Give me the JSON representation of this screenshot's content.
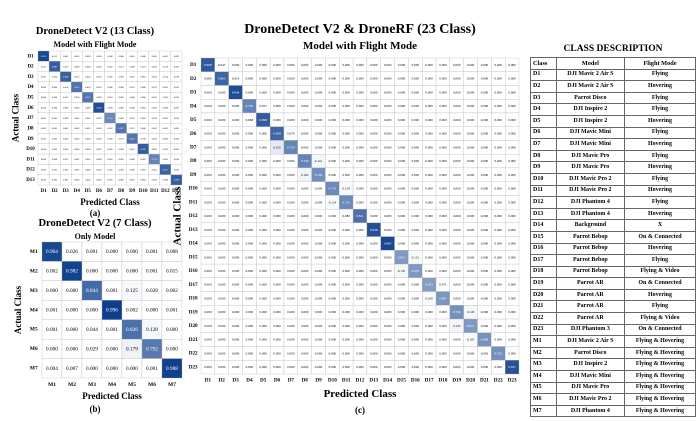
{
  "titles": {
    "a": "DroneDetect V2 (13 Class)",
    "a_sub": "Model with Flight Mode",
    "b": "DroneDetect V2 (7 Class)",
    "b_sub": "Only Model",
    "c": "DroneDetect V2 & DroneRF (23 Class)",
    "c_sub": "Model with Flight Mode",
    "desc": "CLASS DESCRIPTION"
  },
  "captions": {
    "a": "(a)",
    "b": "(b)",
    "c": "(c)"
  },
  "chart_data": [
    {
      "type": "heatmap",
      "id": "a",
      "title": "DroneDetect V2 (13 Class)",
      "subtitle": "Model with Flight Mode",
      "xlabel": "Predicted Class",
      "ylabel": "Actual Class",
      "labels": [
        "D1",
        "D2",
        "D3",
        "D4",
        "D5",
        "D6",
        "D7",
        "D8",
        "D9",
        "D10",
        "D11",
        "D12",
        "D13"
      ],
      "matrix": [
        [
          0.965,
          0.013,
          0.002,
          0.005,
          0.0,
          0.0,
          0.0,
          0.0,
          0.003,
          0.0,
          0.005,
          0.005,
          0.002
        ],
        [
          0.012,
          0.887,
          0.017,
          0.009,
          0.0,
          0.005,
          0.007,
          0.012,
          0.009,
          0.021,
          0.002,
          0.019,
          0.002
        ],
        [
          0.005,
          0.024,
          0.88,
          0.012,
          0.024,
          0.01,
          0.002,
          0.01,
          0.002,
          0.005,
          0.002,
          0.014,
          0.01
        ],
        [
          0.0,
          0.0,
          0.01,
          0.812,
          0.054,
          0.01,
          0.0,
          0.0,
          0.012,
          0.0,
          0.012,
          0.005,
          0.005
        ],
        [
          0.0,
          0.0,
          0.012,
          0.05,
          0.81,
          0.0,
          0.01,
          0.002,
          0.0,
          0.0,
          0.005,
          0.002,
          0.002
        ],
        [
          0.0,
          0.0,
          0.0,
          0.0,
          0.0,
          0.94,
          0.009,
          0.0,
          0.0,
          0.002,
          0.002,
          0.0,
          0.007
        ],
        [
          0.005,
          0.002,
          0.0,
          0.005,
          0.002,
          0.026,
          0.731,
          0.0,
          0.002,
          0.002,
          0.01,
          0.005,
          0.01
        ],
        [
          0.003,
          0.005,
          0.003,
          0.002,
          0.002,
          0.0,
          0.002,
          0.807,
          0.017,
          0.0,
          0.005,
          0.002,
          0.002
        ],
        [
          0.007,
          0.002,
          0.005,
          0.005,
          0.0,
          0.002,
          0.005,
          0.021,
          0.81,
          0.01,
          0.002,
          0.0,
          0.0
        ],
        [
          0.0,
          0.002,
          0.002,
          0.0,
          0.0,
          0.002,
          0.005,
          0.002,
          0.005,
          0.893,
          0.002,
          0.002,
          0.002
        ],
        [
          0.0,
          0.0,
          0.012,
          0.002,
          0.005,
          0.0,
          0.002,
          0.005,
          0.0,
          0.005,
          0.751,
          0.002,
          0.0
        ],
        [
          0.0,
          0.005,
          0.002,
          0.002,
          0.0,
          0.002,
          0.002,
          0.002,
          0.0,
          0.007,
          0.005,
          0.871,
          0.002
        ],
        [
          0.002,
          0.002,
          0.007,
          0.0,
          0.002,
          0.002,
          0.005,
          0.0,
          0.005,
          0.002,
          0.002,
          0.008,
          0.89
        ]
      ]
    },
    {
      "type": "heatmap",
      "id": "b",
      "title": "DroneDetect V2 (7 Class)",
      "subtitle": "Only Model",
      "xlabel": "Predicted Class",
      "ylabel": "Actual Class",
      "labels": [
        "M1",
        "M2",
        "M3",
        "M4",
        "M5",
        "M6",
        "M7"
      ],
      "matrix": [
        [
          0.964,
          0.026,
          0.001,
          0.0,
          0.0,
          0.001,
          0.008
        ],
        [
          0.002,
          0.982,
          0.0,
          0.0,
          0.0,
          0.001,
          0.015
        ],
        [
          0.0,
          0.0,
          0.844,
          0.001,
          0.125,
          0.028,
          0.002
        ],
        [
          0.001,
          0.0,
          0.0,
          0.996,
          0.002,
          0.0,
          0.001
        ],
        [
          0.001,
          0.0,
          0.044,
          0.001,
          0.826,
          0.128,
          0.0
        ],
        [
          0.0,
          0.0,
          0.029,
          0.0,
          0.179,
          0.792,
          0.0
        ],
        [
          0.004,
          0.007,
          0.0,
          0.0,
          0.0,
          0.001,
          0.988
        ]
      ]
    },
    {
      "type": "heatmap",
      "id": "c",
      "title": "DroneDetect V2 & DroneRF (23 Class)",
      "subtitle": "Model with Flight Mode",
      "xlabel": "Predicted Class",
      "ylabel": "Actual Class",
      "labels": [
        "D1",
        "D2",
        "D3",
        "D4",
        "D5",
        "D6",
        "D7",
        "D8",
        "D9",
        "D10",
        "D11",
        "D12",
        "D13",
        "D14",
        "D15",
        "D16",
        "D17",
        "D18",
        "D19",
        "D20",
        "D21",
        "D22",
        "D23"
      ],
      "diagonal": [
        0.908,
        0.865,
        0.944,
        0.748,
        0.898,
        0.858,
        0.75,
        0.748,
        0.709,
        0.733,
        0.724,
        0.821,
        0.938,
        0.965,
        0.671,
        0.67,
        0.653,
        0.681,
        0.7,
        0.671,
        0.698,
        0.702,
        0.931
      ],
      "off_diagonal": [
        {
          "row": "D1",
          "col": "D2",
          "value": 0.047
        },
        {
          "row": "D2",
          "col": "D1",
          "value": 0.06
        },
        {
          "row": "D2",
          "col": "D3",
          "value": 0.016
        },
        {
          "row": "D4",
          "col": "D5",
          "value": 0.057
        },
        {
          "row": "D5",
          "col": "D4",
          "value": 0.068
        },
        {
          "row": "D6",
          "col": "D7",
          "value": 0.074
        },
        {
          "row": "D7",
          "col": "D6",
          "value": 0.25
        },
        {
          "row": "D8",
          "col": "D9",
          "value": 0.141
        },
        {
          "row": "D9",
          "col": "D8",
          "value": 0.162
        },
        {
          "row": "D10",
          "col": "D11",
          "value": 0.119
        },
        {
          "row": "D11",
          "col": "D10",
          "value": 0.114
        },
        {
          "row": "D12",
          "col": "D11",
          "value": 0.082
        },
        {
          "row": "D15",
          "col": "D16",
          "value": 0.115
        },
        {
          "row": "D16",
          "col": "D15",
          "value": 0.135
        },
        {
          "row": "D17",
          "col": "D18",
          "value": 0.071
        },
        {
          "row": "D18",
          "col": "D17",
          "value": 0.1
        },
        {
          "row": "D19",
          "col": "D20",
          "value": 0.143
        },
        {
          "row": "D20",
          "col": "D19",
          "value": 0.145
        },
        {
          "row": "D21",
          "col": "D20",
          "value": 0.105
        },
        {
          "row": "D22",
          "col": "D21",
          "value": 0.042
        }
      ],
      "default_off_diagonal": 0.0
    }
  ],
  "description_table": {
    "headers": [
      "Class",
      "Model",
      "Flight Mode"
    ],
    "rows": [
      [
        "D1",
        "DJI Mavic 2 Air S",
        "Flying"
      ],
      [
        "D2",
        "DJI Mavic 2 Air S",
        "Hovering"
      ],
      [
        "D3",
        "Parrot Disco",
        "Flying"
      ],
      [
        "D4",
        "DJI Inspire 2",
        "Flying"
      ],
      [
        "D5",
        "DJI Inspire 2",
        "Hovering"
      ],
      [
        "D6",
        "DJI Mavic Mini",
        "Flying"
      ],
      [
        "D7",
        "DJI Mavic Mini",
        "Hovering"
      ],
      [
        "D8",
        "DJI Mavic Pro",
        "Flying"
      ],
      [
        "D9",
        "DJI Mavic Pro",
        "Hovering"
      ],
      [
        "D10",
        "DJI Mavic Pro 2",
        "Flying"
      ],
      [
        "D11",
        "DJI Mavic Pro 2",
        "Hovering"
      ],
      [
        "D12",
        "DJI Phantom 4",
        "Flying"
      ],
      [
        "D13",
        "DJI Phantom 4",
        "Hovering"
      ],
      [
        "D14",
        "Background",
        "X"
      ],
      [
        "D15",
        "Parrot Bebop",
        "On & Connected"
      ],
      [
        "D16",
        "Parrot Bebop",
        "Hovering"
      ],
      [
        "D17",
        "Parrot Bebop",
        "Flying"
      ],
      [
        "D18",
        "Parrot Bebop",
        "Flying & Video"
      ],
      [
        "D19",
        "Parrot AR",
        "On & Connected"
      ],
      [
        "D20",
        "Parrot AR",
        "Hovering"
      ],
      [
        "D21",
        "Parrot AR",
        "Flying"
      ],
      [
        "D22",
        "Parrot AR",
        "Flying & Video"
      ],
      [
        "D23",
        "DJI Phantom 3",
        "On & Connected"
      ],
      [
        "M1",
        "DJI Mavic 2 Air S",
        "Flying & Hovering"
      ],
      [
        "M2",
        "Parrot Disco",
        "Flying & Hovering"
      ],
      [
        "M3",
        "DJI Inspire 2",
        "Flying & Hovering"
      ],
      [
        "M4",
        "DJI Mavic Mini",
        "Flying & Hovering"
      ],
      [
        "M5",
        "DJI Mavic Pro",
        "Flying & Hovering"
      ],
      [
        "M6",
        "DJI Mavic Pro 2",
        "Flying & Hovering"
      ],
      [
        "M7",
        "DJI Phantom 4",
        "Flying & Hovering"
      ]
    ]
  },
  "colors": {
    "low": "#ffffff",
    "high": "#0b3d8c",
    "grid": "#b0b0b0"
  }
}
